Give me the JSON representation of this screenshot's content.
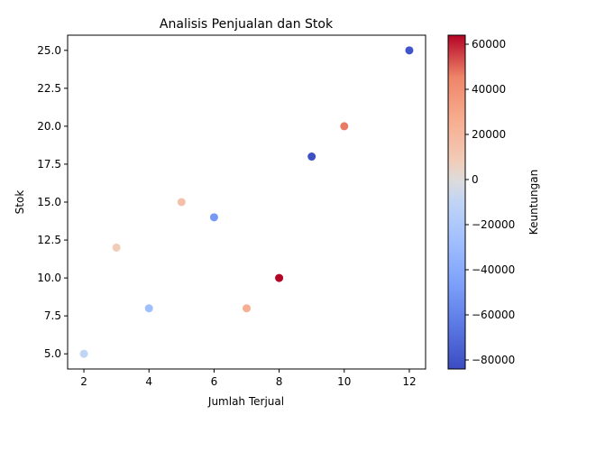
{
  "chart_data": {
    "type": "scatter",
    "title": "Analisis Penjualan dan Stok",
    "xlabel": "Jumlah Terjual",
    "ylabel": "Stok",
    "xlim": [
      1.5,
      12.5
    ],
    "ylim": [
      4.0,
      26.0
    ],
    "xticks": [
      2,
      4,
      6,
      8,
      10,
      12
    ],
    "yticks": [
      5.0,
      7.5,
      10.0,
      12.5,
      15.0,
      17.5,
      20.0,
      22.5,
      25.0
    ],
    "colorbar": {
      "label": "Keuntungan",
      "colormap": "coolwarm",
      "vmin": -84000,
      "vmax": 64000,
      "ticks": [
        60000,
        40000,
        20000,
        0,
        -20000,
        -40000,
        -60000,
        -80000
      ]
    },
    "points": [
      {
        "x": 2,
        "y": 5,
        "color_value": -10000
      },
      {
        "x": 3,
        "y": 12,
        "color_value": 8000
      },
      {
        "x": 4,
        "y": 8,
        "color_value": -28000
      },
      {
        "x": 5,
        "y": 15,
        "color_value": 15000
      },
      {
        "x": 6,
        "y": 14,
        "color_value": -50000
      },
      {
        "x": 7,
        "y": 8,
        "color_value": 25000
      },
      {
        "x": 8,
        "y": 10,
        "color_value": 64000
      },
      {
        "x": 9,
        "y": 18,
        "color_value": -82000
      },
      {
        "x": 10,
        "y": 20,
        "color_value": 47000
      },
      {
        "x": 12,
        "y": 25,
        "color_value": -80000
      }
    ]
  }
}
